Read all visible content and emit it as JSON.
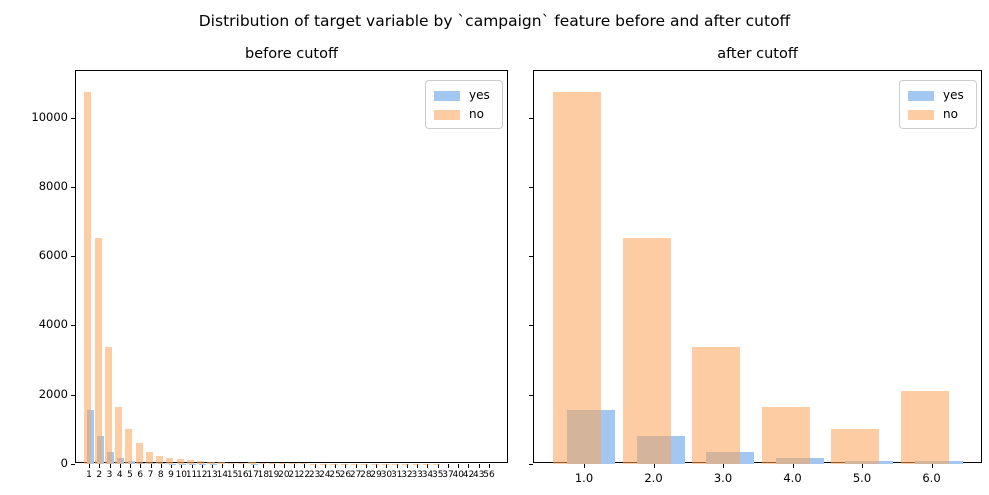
{
  "figure": {
    "suptitle": "Distribution of target variable by `campaign` feature before and after cutoff",
    "background": "#ffffff"
  },
  "colors": {
    "yes_bar": "#a2c7f0",
    "no_bar_rgba": "rgba(251,166,92,0.57)",
    "no_bar_over_white": "#fdcca2",
    "overlap": "#d5b49c",
    "axis": "#000000",
    "legend_border": "#cccccc"
  },
  "legend": {
    "items": [
      {
        "label": "yes",
        "color": "#a2c7f0"
      },
      {
        "label": "no",
        "color": "#fdcca2"
      }
    ],
    "position": "upper right"
  },
  "chart_data": [
    {
      "type": "bar",
      "title": "before cutoff",
      "xlabel": "",
      "ylabel": "",
      "grid": false,
      "ylim": [
        0,
        11350
      ],
      "y_ticks": [
        0,
        2000,
        4000,
        6000,
        8000,
        10000
      ],
      "y_tick_labels": [
        "0",
        "2000",
        "4000",
        "6000",
        "8000",
        "10000"
      ],
      "categories": [
        "1",
        "2",
        "3",
        "4",
        "5",
        "6",
        "7",
        "8",
        "9",
        "10",
        "11",
        "12",
        "13",
        "14",
        "15",
        "16",
        "17",
        "18",
        "19",
        "20",
        "21",
        "22",
        "23",
        "24",
        "25",
        "26",
        "27",
        "28",
        "29",
        "30",
        "31",
        "32",
        "33",
        "34",
        "35",
        "37",
        "40",
        "42",
        "43",
        "56"
      ],
      "series": [
        {
          "name": "yes",
          "values": [
            1570,
            810,
            350,
            160,
            75,
            35,
            20,
            15,
            8,
            6,
            5,
            4,
            3,
            2,
            2,
            2,
            3,
            1,
            1,
            1,
            1,
            0,
            0,
            0,
            0,
            0,
            0,
            0,
            0,
            0,
            0,
            0,
            0,
            0,
            0,
            0,
            0,
            0,
            0,
            0
          ]
        },
        {
          "name": "no",
          "values": [
            10750,
            6530,
            3380,
            1660,
            1010,
            600,
            340,
            230,
            180,
            130,
            120,
            80,
            60,
            45,
            35,
            30,
            50,
            20,
            25,
            22,
            18,
            15,
            12,
            10,
            10,
            8,
            6,
            8,
            5,
            5,
            6,
            4,
            4,
            3,
            3,
            2,
            1,
            1,
            2,
            1
          ]
        }
      ]
    },
    {
      "type": "bar",
      "title": "after cutoff",
      "xlabel": "",
      "ylabel": "",
      "grid": false,
      "ylim": [
        0,
        11350
      ],
      "y_ticks": [
        0,
        2000,
        4000,
        6000,
        8000,
        10000
      ],
      "y_tick_labels": [],
      "categories": [
        "1.0",
        "2.0",
        "3.0",
        "4.0",
        "5.0",
        "6.0"
      ],
      "series": [
        {
          "name": "yes",
          "values": [
            1570,
            810,
            350,
            160,
            75,
            100
          ]
        },
        {
          "name": "no",
          "values": [
            10750,
            6530,
            3380,
            1660,
            1010,
            2100
          ]
        }
      ]
    }
  ]
}
